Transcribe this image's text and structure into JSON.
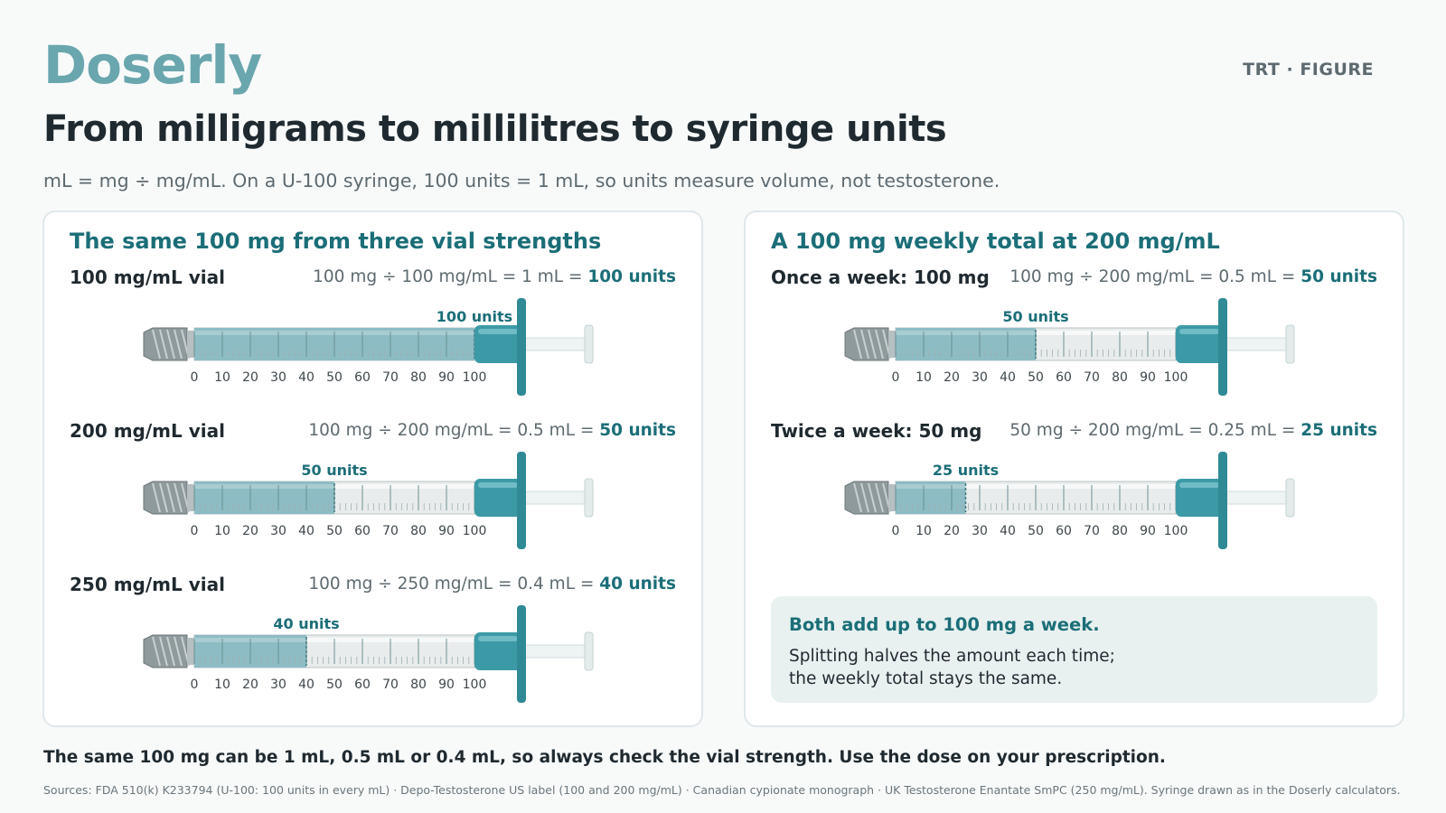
{
  "header": {
    "logo": "Doserly",
    "tag": "TRT · FIGURE",
    "title": "From milligrams to millilitres to syringe units",
    "subtitle": "mL = mg ÷ mg/mL. On a U-100 syringe, 100 units = 1 mL, so units measure volume, not testosterone."
  },
  "colors": {
    "accent": "#1b6e78",
    "logo": "#6aa6ad",
    "fill": "#8dbcc4",
    "hub": "#3c9aa6",
    "note_bg": "#e8f1f0"
  },
  "syringe": {
    "scale_max": 100,
    "ticks": [
      "0",
      "10",
      "20",
      "30",
      "40",
      "50",
      "60",
      "70",
      "80",
      "90",
      "100"
    ]
  },
  "left_panel": {
    "title": "The same 100 mg from three vial strengths",
    "rows": [
      {
        "label": "100 mg/mL vial",
        "formula": "100 mg ÷ 100 mg/mL = 1 mL = ",
        "result": "100 units",
        "units": 100,
        "fill_label": "100 units"
      },
      {
        "label": "200 mg/mL vial",
        "formula": "100 mg ÷ 200 mg/mL = 0.5 mL = ",
        "result": "50 units",
        "units": 50,
        "fill_label": "50 units"
      },
      {
        "label": "250 mg/mL vial",
        "formula": "100 mg ÷ 250 mg/mL = 0.4 mL = ",
        "result": "40 units",
        "units": 40,
        "fill_label": "40 units"
      }
    ]
  },
  "right_panel": {
    "title": "A 100 mg weekly total at 200 mg/mL",
    "rows": [
      {
        "label": "Once a week: 100 mg",
        "formula": "100 mg ÷ 200 mg/mL = 0.5 mL = ",
        "result": "50 units",
        "units": 50,
        "fill_label": "50 units"
      },
      {
        "label": "Twice a week: 50 mg",
        "formula": "50 mg ÷ 200 mg/mL = 0.25 mL = ",
        "result": "25 units",
        "units": 25,
        "fill_label": "25 units"
      }
    ],
    "note_head": "Both add up to 100 mg a week.",
    "note_line1": "Splitting halves the amount each time;",
    "note_line2": "the weekly total stays the same."
  },
  "footer": {
    "summary": "The same 100 mg can be 1 mL, 0.5 mL or 0.4 mL, so always check the vial strength. Use the dose on your prescription.",
    "sources": "Sources: FDA 510(k) K233794 (U-100: 100 units in every mL) · Depo-Testosterone US label (100 and 200 mg/mL) · Canadian cypionate monograph · UK Testosterone Enantate SmPC (250 mg/mL). Syringe drawn as in the Doserly calculators."
  }
}
